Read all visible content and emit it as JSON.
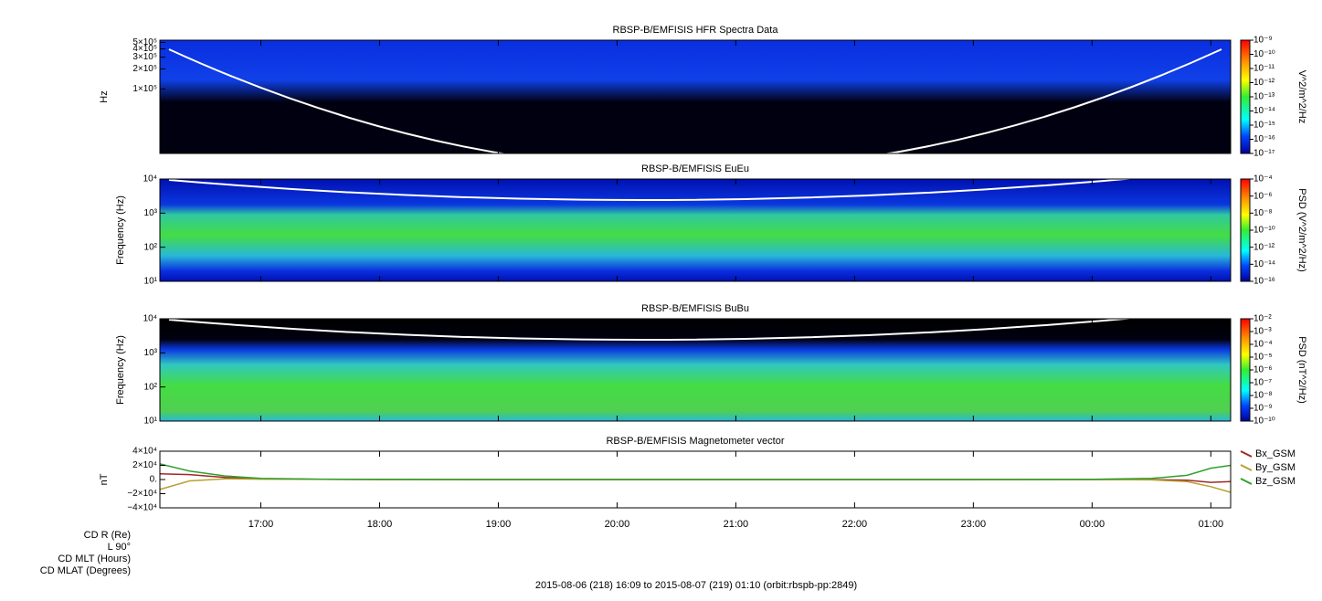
{
  "chart_data": [
    {
      "type": "spectrogram",
      "title": "RBSP-B/EMFISIS  HFR Spectra Data",
      "ylabel": "Hz",
      "log": true,
      "ylim": [
        10700,
        540000
      ],
      "yticks": [
        {
          "value": 100000,
          "label": "1×10⁵"
        },
        {
          "value": 200000,
          "label": "2×10⁵"
        },
        {
          "value": 300000,
          "label": "3×10⁵"
        },
        {
          "value": 400000,
          "label": "4×10⁵"
        },
        {
          "value": 500000,
          "label": "5×10⁵"
        }
      ],
      "colorbar": {
        "label": "V^2/m^2/Hz",
        "lim": [
          1e-17,
          1e-09
        ],
        "ticks": [
          {
            "value": 1e-09,
            "label": "10⁻⁹"
          },
          {
            "value": 1e-10,
            "label": "10⁻¹⁰"
          },
          {
            "value": 1e-11,
            "label": "10⁻¹¹"
          },
          {
            "value": 1e-12,
            "label": "10⁻¹²"
          },
          {
            "value": 1e-13,
            "label": "10⁻¹³"
          },
          {
            "value": 1e-14,
            "label": "10⁻¹⁴"
          },
          {
            "value": 1e-15,
            "label": "10⁻¹⁵"
          },
          {
            "value": 1e-16,
            "label": "10⁻¹⁶"
          },
          {
            "value": 1e-17,
            "label": "10⁻¹⁷"
          }
        ]
      }
    },
    {
      "type": "spectrogram",
      "title": "RBSP-B/EMFISIS  EuEu",
      "ylabel": "Frequency (Hz)",
      "log": true,
      "ylim": [
        10,
        10000
      ],
      "yticks": [
        {
          "value": 10,
          "label": "10¹"
        },
        {
          "value": 100,
          "label": "10²"
        },
        {
          "value": 1000,
          "label": "10³"
        },
        {
          "value": 10000,
          "label": "10⁴"
        }
      ],
      "colorbar": {
        "label": "PSD (V^2/m^2/Hz)",
        "lim": [
          1e-16,
          0.0001
        ],
        "ticks": [
          {
            "value": 0.0001,
            "label": "10⁻⁴"
          },
          {
            "value": 1e-06,
            "label": "10⁻⁶"
          },
          {
            "value": 1e-08,
            "label": "10⁻⁸"
          },
          {
            "value": 1e-10,
            "label": "10⁻¹⁰"
          },
          {
            "value": 1e-12,
            "label": "10⁻¹²"
          },
          {
            "value": 1e-14,
            "label": "10⁻¹⁴"
          },
          {
            "value": 1e-16,
            "label": "10⁻¹⁶"
          }
        ]
      }
    },
    {
      "type": "spectrogram",
      "title": "RBSP-B/EMFISIS  BuBu",
      "ylabel": "Frequency (Hz)",
      "log": true,
      "ylim": [
        10,
        10000
      ],
      "yticks": [
        {
          "value": 10,
          "label": "10¹"
        },
        {
          "value": 100,
          "label": "10²"
        },
        {
          "value": 1000,
          "label": "10³"
        },
        {
          "value": 10000,
          "label": "10⁴"
        }
      ],
      "colorbar": {
        "label": "PSD (nT^2/Hz)",
        "lim": [
          1e-10,
          0.01
        ],
        "ticks": [
          {
            "value": 0.01,
            "label": "10⁻²"
          },
          {
            "value": 0.001,
            "label": "10⁻³"
          },
          {
            "value": 0.0001,
            "label": "10⁻⁴"
          },
          {
            "value": 1e-05,
            "label": "10⁻⁵"
          },
          {
            "value": 1e-06,
            "label": "10⁻⁶"
          },
          {
            "value": 1e-07,
            "label": "10⁻⁷"
          },
          {
            "value": 1e-08,
            "label": "10⁻⁸"
          },
          {
            "value": 1e-09,
            "label": "10⁻⁹"
          },
          {
            "value": 1e-10,
            "label": "10⁻¹⁰"
          }
        ]
      }
    },
    {
      "type": "line",
      "title": "RBSP-B/EMFISIS  Magnetometer vector",
      "ylabel": "nT",
      "xlim": [
        16.15,
        25.1667
      ],
      "xticks": [
        {
          "value": 17,
          "label": "17:00"
        },
        {
          "value": 18,
          "label": "18:00"
        },
        {
          "value": 19,
          "label": "19:00"
        },
        {
          "value": 20,
          "label": "20:00"
        },
        {
          "value": 21,
          "label": "21:00"
        },
        {
          "value": 22,
          "label": "22:00"
        },
        {
          "value": 23,
          "label": "23:00"
        },
        {
          "value": 24,
          "label": "00:00"
        },
        {
          "value": 25,
          "label": "01:00"
        }
      ],
      "ylim": [
        -40000,
        40000
      ],
      "yticks": [
        {
          "value": -40000,
          "label": "−4×10⁴"
        },
        {
          "value": -20000,
          "label": "−2×10⁴"
        },
        {
          "value": 0,
          "label": "0."
        },
        {
          "value": 20000,
          "label": "2×10⁴"
        },
        {
          "value": 40000,
          "label": "4×10⁴"
        }
      ],
      "x": [
        16.15,
        16.4,
        16.7,
        17,
        17.5,
        18,
        19,
        20,
        21,
        22,
        23,
        24,
        24.5,
        24.8,
        25.0,
        25.1667
      ],
      "series": [
        {
          "name": "Bx_GSM",
          "color": "#a02828",
          "values": [
            8000,
            7000,
            3000,
            1000,
            300,
            0,
            0,
            0,
            0,
            0,
            0,
            0,
            0,
            -1000,
            -4000,
            -3000
          ]
        },
        {
          "name": "By_GSM",
          "color": "#b8a030",
          "values": [
            -14000,
            -2000,
            1000,
            500,
            200,
            0,
            0,
            0,
            0,
            0,
            0,
            0,
            -500,
            -3000,
            -10000,
            -18000
          ]
        },
        {
          "name": "Bz_GSM",
          "color": "#30a030",
          "values": [
            22000,
            12000,
            5000,
            1500,
            500,
            200,
            0,
            0,
            0,
            0,
            0,
            300,
            1500,
            6000,
            16000,
            20000
          ]
        }
      ]
    }
  ],
  "footer": {
    "rows": [
      "CD R (Re)",
      "L 90°",
      "CD MLT (Hours)",
      "CD MLAT (Degrees)"
    ],
    "caption": "2015-08-06 (218) 16:09 to 2015-08-07 (219) 01:10 (orbit:rbspb-pp:2849)"
  }
}
